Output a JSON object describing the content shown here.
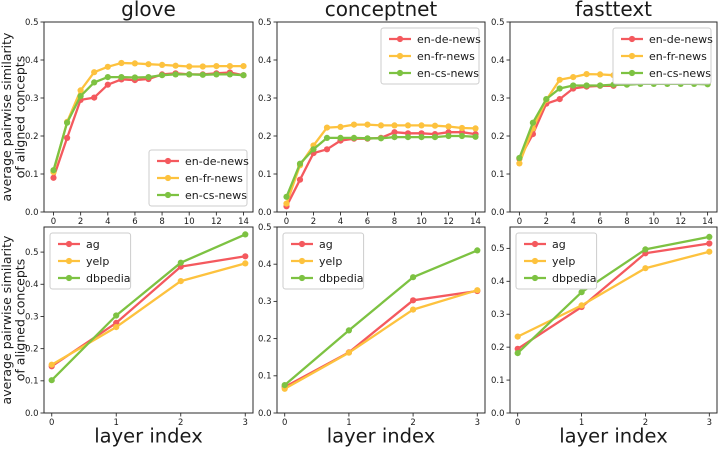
{
  "figure": {
    "shared_ylabel": "average pairwise similarity\nof aligned concepts",
    "shared_xlabel": "layer index"
  },
  "colors": {
    "red": "#f4595e",
    "yellow": "#fdc23e",
    "green": "#7dc242",
    "spine": "#2b2b2b",
    "tick_text": "#1a1a1a",
    "legend_border": "#cccccc"
  },
  "chart_data": [
    {
      "id": "glove-news",
      "type": "line",
      "title": "glove",
      "ylabel": "average pairwise similarity\nof aligned concepts",
      "xlabel": "",
      "x": [
        0,
        1,
        2,
        3,
        4,
        5,
        6,
        7,
        8,
        9,
        10,
        11,
        12,
        13,
        14
      ],
      "xticks": [
        0,
        2,
        4,
        6,
        8,
        10,
        12,
        14
      ],
      "yticks": [
        0.0,
        0.1,
        0.2,
        0.3,
        0.4,
        0.5
      ],
      "xlim": [
        -0.7,
        14.7
      ],
      "ylim": [
        0,
        0.5
      ],
      "grid": false,
      "legend_loc": "lower right",
      "series": [
        {
          "name": "en-de-news",
          "color": "#f4595e",
          "values": [
            0.09,
            0.195,
            0.295,
            0.301,
            0.335,
            0.349,
            0.347,
            0.35,
            0.362,
            0.365,
            0.362,
            0.362,
            0.365,
            0.367,
            0.36
          ]
        },
        {
          "name": "en-fr-news",
          "color": "#fdc23e",
          "values": [
            0.105,
            0.237,
            0.32,
            0.368,
            0.382,
            0.392,
            0.391,
            0.389,
            0.387,
            0.385,
            0.383,
            0.383,
            0.384,
            0.384,
            0.384
          ]
        },
        {
          "name": "en-cs-news",
          "color": "#7dc242",
          "values": [
            0.11,
            0.235,
            0.305,
            0.341,
            0.355,
            0.355,
            0.354,
            0.355,
            0.36,
            0.362,
            0.362,
            0.361,
            0.362,
            0.362,
            0.36
          ]
        }
      ]
    },
    {
      "id": "conceptnet-news",
      "type": "line",
      "title": "conceptnet",
      "ylabel": "",
      "xlabel": "",
      "x": [
        0,
        1,
        2,
        3,
        4,
        5,
        6,
        7,
        8,
        9,
        10,
        11,
        12,
        13,
        14
      ],
      "xticks": [
        0,
        2,
        4,
        6,
        8,
        10,
        12,
        14
      ],
      "yticks": [
        0.0,
        0.1,
        0.2,
        0.3,
        0.4,
        0.5
      ],
      "xlim": [
        -0.7,
        14.7
      ],
      "ylim": [
        0,
        0.5
      ],
      "grid": false,
      "legend_loc": "upper right",
      "series": [
        {
          "name": "en-de-news",
          "color": "#f4595e",
          "values": [
            0.015,
            0.085,
            0.155,
            0.165,
            0.188,
            0.193,
            0.193,
            0.195,
            0.21,
            0.207,
            0.207,
            0.205,
            0.21,
            0.21,
            0.205
          ]
        },
        {
          "name": "en-fr-news",
          "color": "#fdc23e",
          "values": [
            0.022,
            0.123,
            0.175,
            0.222,
            0.224,
            0.23,
            0.23,
            0.228,
            0.228,
            0.228,
            0.228,
            0.227,
            0.225,
            0.221,
            0.22
          ]
        },
        {
          "name": "en-cs-news",
          "color": "#7dc242",
          "values": [
            0.04,
            0.127,
            0.165,
            0.195,
            0.195,
            0.195,
            0.194,
            0.194,
            0.197,
            0.197,
            0.197,
            0.197,
            0.2,
            0.2,
            0.198
          ]
        }
      ]
    },
    {
      "id": "fasttext-news",
      "type": "line",
      "title": "fasttext",
      "ylabel": "",
      "xlabel": "",
      "x": [
        0,
        1,
        2,
        3,
        4,
        5,
        6,
        7,
        8,
        9,
        10,
        11,
        12,
        13,
        14
      ],
      "xticks": [
        0,
        2,
        4,
        6,
        8,
        10,
        12,
        14
      ],
      "yticks": [
        0.0,
        0.1,
        0.2,
        0.3,
        0.4,
        0.5
      ],
      "xlim": [
        -0.7,
        14.7
      ],
      "ylim": [
        0,
        0.5
      ],
      "grid": false,
      "legend_loc": "upper right",
      "series": [
        {
          "name": "en-de-news",
          "color": "#f4595e",
          "values": [
            0.14,
            0.205,
            0.285,
            0.297,
            0.325,
            0.33,
            0.332,
            0.332,
            0.34,
            0.342,
            0.342,
            0.34,
            0.342,
            0.344,
            0.338
          ]
        },
        {
          "name": "en-fr-news",
          "color": "#fdc23e",
          "values": [
            0.128,
            0.22,
            0.295,
            0.348,
            0.355,
            0.363,
            0.362,
            0.36,
            0.358,
            0.358,
            0.36,
            0.358,
            0.358,
            0.358,
            0.355
          ]
        },
        {
          "name": "en-cs-news",
          "color": "#7dc242",
          "values": [
            0.142,
            0.235,
            0.297,
            0.325,
            0.333,
            0.333,
            0.333,
            0.335,
            0.335,
            0.337,
            0.337,
            0.337,
            0.337,
            0.337,
            0.336
          ]
        }
      ]
    },
    {
      "id": "glove-topics",
      "type": "line",
      "title": "",
      "ylabel": "average pairwise similarity\nof aligned concepts",
      "xlabel": "layer index",
      "x": [
        0,
        1,
        2,
        3
      ],
      "xticks": [
        0,
        1,
        2,
        3
      ],
      "yticks": [
        0.0,
        0.1,
        0.2,
        0.3,
        0.4,
        0.5
      ],
      "xlim": [
        -0.12,
        3.12
      ],
      "ylim": [
        0,
        0.578
      ],
      "grid": false,
      "legend_loc": "upper left",
      "series": [
        {
          "name": "ag",
          "color": "#f4595e",
          "values": [
            0.145,
            0.28,
            0.455,
            0.487
          ]
        },
        {
          "name": "yelp",
          "color": "#fdc23e",
          "values": [
            0.15,
            0.267,
            0.41,
            0.465
          ]
        },
        {
          "name": "dbpedia",
          "color": "#7dc242",
          "values": [
            0.102,
            0.303,
            0.467,
            0.555
          ]
        }
      ]
    },
    {
      "id": "conceptnet-topics",
      "type": "line",
      "title": "",
      "ylabel": "",
      "xlabel": "layer index",
      "x": [
        0,
        1,
        2,
        3
      ],
      "xticks": [
        0,
        1,
        2,
        3
      ],
      "yticks": [
        0.0,
        0.1,
        0.2,
        0.3,
        0.4,
        0.5
      ],
      "xlim": [
        -0.12,
        3.12
      ],
      "ylim": [
        0,
        0.5
      ],
      "grid": false,
      "legend_loc": "upper left",
      "series": [
        {
          "name": "ag",
          "color": "#f4595e",
          "values": [
            0.07,
            0.163,
            0.303,
            0.328
          ]
        },
        {
          "name": "yelp",
          "color": "#fdc23e",
          "values": [
            0.065,
            0.162,
            0.278,
            0.33
          ]
        },
        {
          "name": "dbpedia",
          "color": "#7dc242",
          "values": [
            0.075,
            0.222,
            0.365,
            0.437
          ]
        }
      ]
    },
    {
      "id": "fasttext-topics",
      "type": "line",
      "title": "",
      "ylabel": "",
      "xlabel": "layer index",
      "x": [
        0,
        1,
        2,
        3
      ],
      "xticks": [
        0,
        1,
        2,
        3
      ],
      "yticks": [
        0.0,
        0.1,
        0.2,
        0.3,
        0.4,
        0.5
      ],
      "xlim": [
        -0.12,
        3.12
      ],
      "ylim": [
        0,
        0.565
      ],
      "grid": false,
      "legend_loc": "upper left",
      "series": [
        {
          "name": "ag",
          "color": "#f4595e",
          "values": [
            0.195,
            0.322,
            0.485,
            0.515
          ]
        },
        {
          "name": "yelp",
          "color": "#fdc23e",
          "values": [
            0.232,
            0.327,
            0.44,
            0.49
          ]
        },
        {
          "name": "dbpedia",
          "color": "#7dc242",
          "values": [
            0.182,
            0.367,
            0.497,
            0.535
          ]
        }
      ]
    }
  ]
}
